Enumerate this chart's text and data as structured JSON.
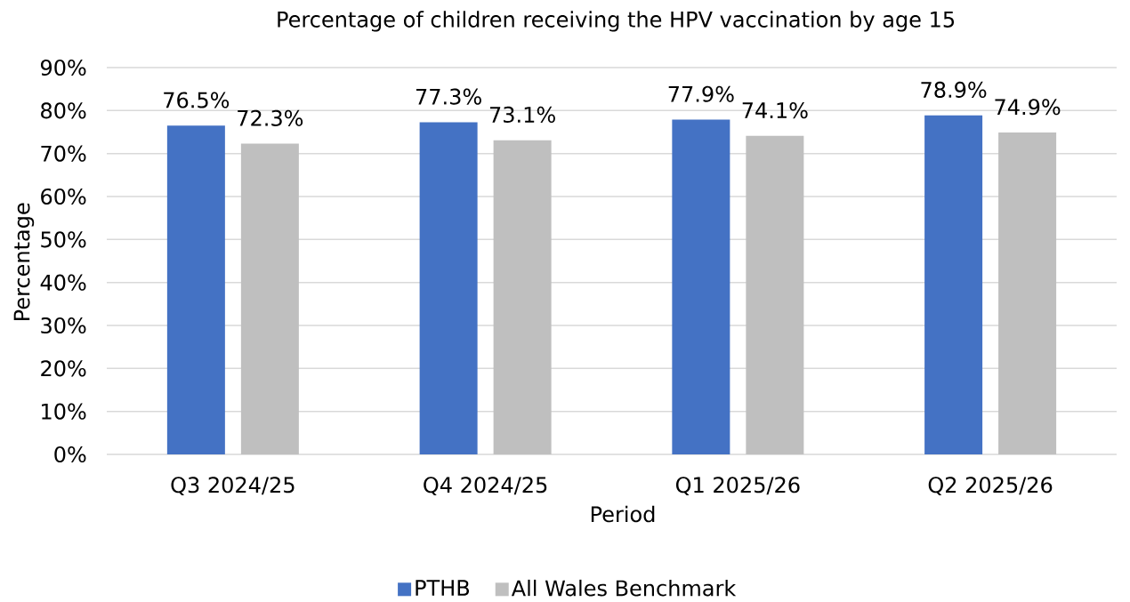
{
  "chart_data": {
    "type": "bar",
    "title": "Percentage of children receiving the HPV vaccination by age 15",
    "xlabel": "Period",
    "ylabel": "Percentage",
    "categories": [
      "Q3 2024/25",
      "Q4 2024/25",
      "Q1 2025/26",
      "Q2 2025/26"
    ],
    "series": [
      {
        "name": "PTHB",
        "color": "#4472c4",
        "values": [
          76.5,
          77.3,
          77.9,
          78.9
        ],
        "value_labels": [
          "76.5%",
          "77.3%",
          "77.9%",
          "78.9%"
        ]
      },
      {
        "name": "All Wales Benchmark",
        "color": "#bfbfbf",
        "values": [
          72.3,
          73.1,
          74.1,
          74.9
        ],
        "value_labels": [
          "72.3%",
          "73.1%",
          "74.1%",
          "74.9%"
        ]
      }
    ],
    "ylim": [
      0,
      90
    ],
    "yticks": [
      {
        "value": 0,
        "label": "0%"
      },
      {
        "value": 10,
        "label": "10%"
      },
      {
        "value": 20,
        "label": "20%"
      },
      {
        "value": 30,
        "label": "30%"
      },
      {
        "value": 40,
        "label": "40%"
      },
      {
        "value": 50,
        "label": "50%"
      },
      {
        "value": 60,
        "label": "60%"
      },
      {
        "value": 70,
        "label": "70%"
      },
      {
        "value": 80,
        "label": "80%"
      },
      {
        "value": 90,
        "label": "90%"
      }
    ],
    "grid": "y",
    "legend": "bottom"
  }
}
